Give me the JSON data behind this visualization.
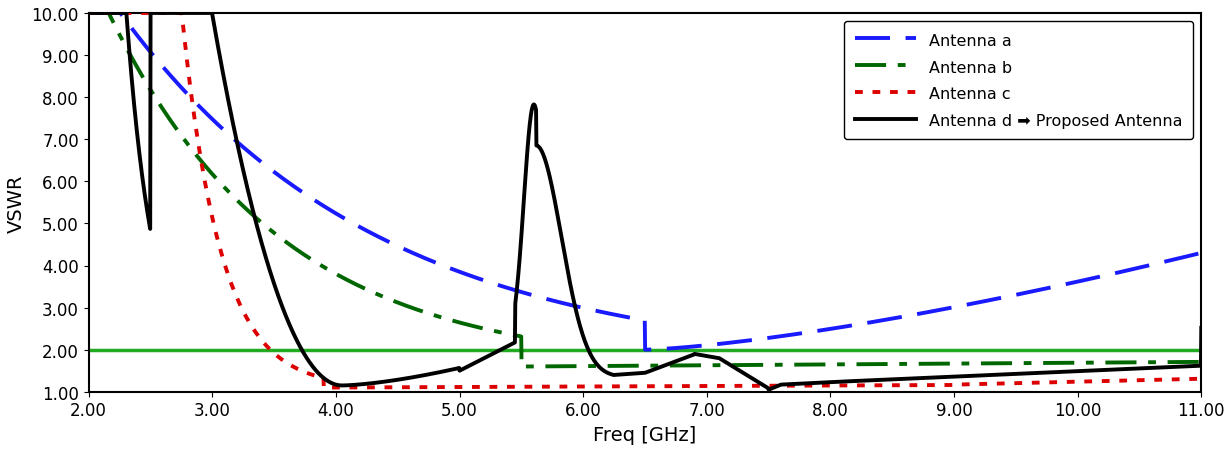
{
  "title": "",
  "xlabel": "Freq [GHz]",
  "ylabel": "VSWR",
  "xlim": [
    2.0,
    11.0
  ],
  "ylim": [
    1.0,
    10.0
  ],
  "xticks": [
    2.0,
    3.0,
    4.0,
    5.0,
    6.0,
    7.0,
    8.0,
    9.0,
    10.0,
    11.0
  ],
  "yticks": [
    1.0,
    2.0,
    3.0,
    4.0,
    5.0,
    6.0,
    7.0,
    8.0,
    9.0,
    10.0
  ],
  "ytick_labels": [
    "1.00",
    "2.00",
    "3.00",
    "4.00",
    "5.00",
    "6.00",
    "7.00",
    "8.00",
    "9.00",
    "10.00"
  ],
  "xtick_labels": [
    "2.00",
    "3.00",
    "4.00",
    "5.00",
    "6.00",
    "7.00",
    "8.00",
    "9.00",
    "10.00",
    "11.00"
  ],
  "reference_line_y": 2.0,
  "reference_line_color": "#22aa22",
  "legend_entries": [
    {
      "label": "Antenna a",
      "color": "#1a1aff",
      "linewidth": 2.8
    },
    {
      "label": "Antenna b",
      "color": "#006600",
      "linewidth": 2.8
    },
    {
      "label": "Antenna c",
      "color": "#dd0000",
      "linewidth": 2.8
    },
    {
      "label": "Antenna d ➡ Proposed Antenna",
      "color": "#000000",
      "linewidth": 2.8
    }
  ],
  "background_color": "#ffffff"
}
